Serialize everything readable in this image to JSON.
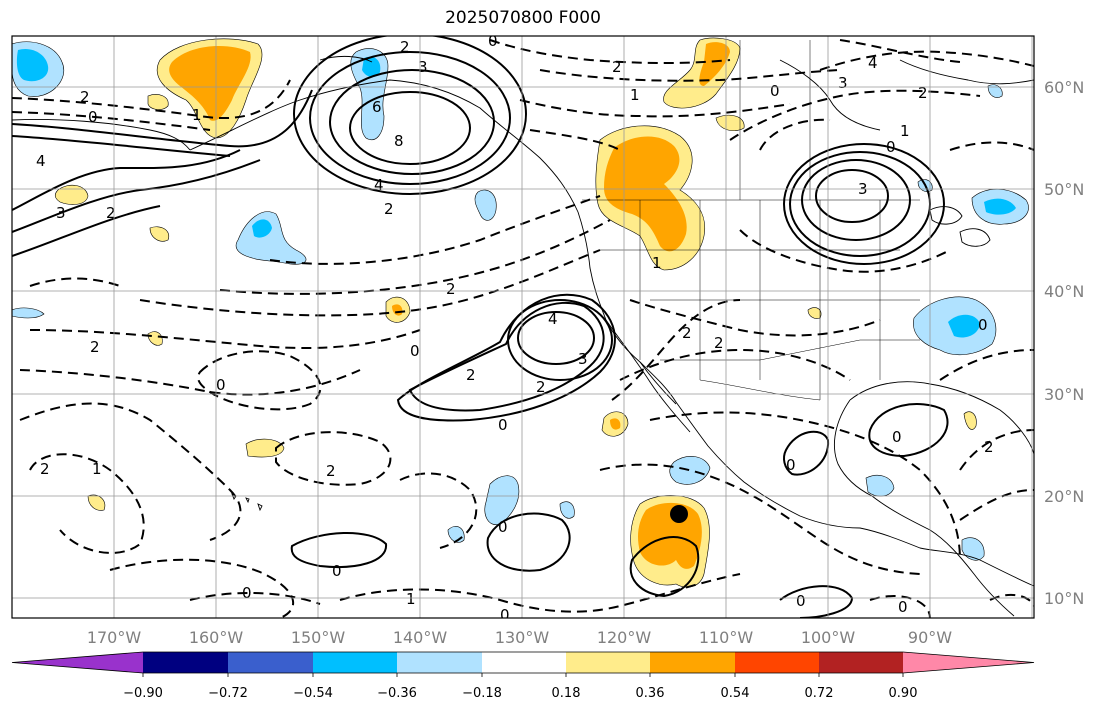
{
  "title": "2025070800 F000",
  "lat_labels": [
    "60°N",
    "50°N",
    "40°N",
    "30°N",
    "20°N",
    "10°N"
  ],
  "lon_labels": [
    "170°W",
    "160°W",
    "150°W",
    "140°W",
    "130°W",
    "120°W",
    "110°W",
    "100°W",
    "90°W"
  ],
  "colorbar": {
    "ticks": [
      "−0.90",
      "−0.72",
      "−0.54",
      "−0.36",
      "−0.18",
      "0.18",
      "0.36",
      "0.54",
      "0.72",
      "0.90"
    ],
    "colors": [
      "#9932cc",
      "#000080",
      "#3a5fcd",
      "#00bfff",
      "#b0e2ff",
      "#ffffff",
      "#ffec8b",
      "#ffa500",
      "#ff4500",
      "#b22222",
      "#ff88a8"
    ]
  },
  "contour_labels": [
    "2",
    "3",
    "0",
    "2",
    "1",
    "0",
    "4",
    "3",
    "2",
    "6",
    "8",
    "4",
    "2",
    "1",
    "0",
    "3",
    "4",
    "1",
    "3",
    "0",
    "2",
    "2",
    "2",
    "4",
    "3",
    "2",
    "0",
    "2",
    "2",
    "2",
    "0",
    "1",
    "2",
    "0",
    "0",
    "1",
    "0",
    "0",
    "0",
    "0",
    "1",
    "0",
    "0",
    "2",
    "2",
    "0",
    "0",
    "2"
  ],
  "marker": {
    "name": "storm-center-marker",
    "lon": -115,
    "lat": 18
  }
}
